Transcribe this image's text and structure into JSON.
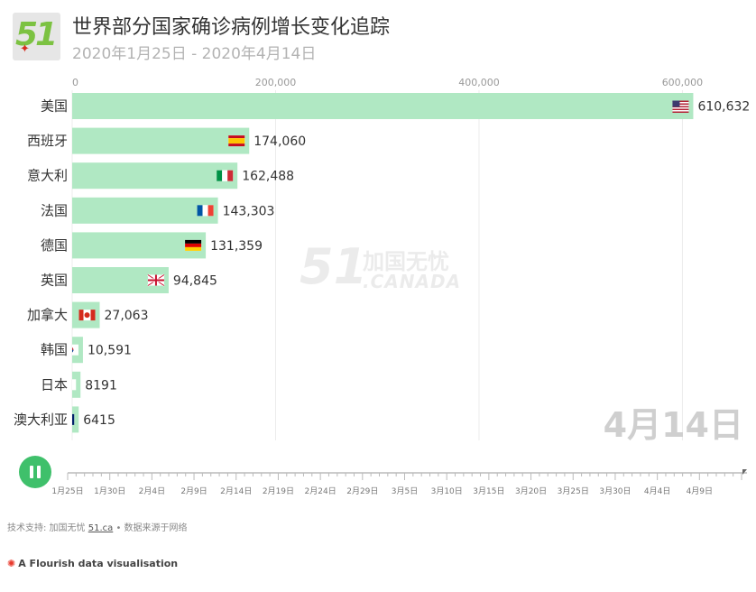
{
  "header": {
    "logo_text": "51",
    "title": "世界部分国家确诊病例增长变化追踪",
    "subtitle": "2020年1月25日 - 2020年4月14日"
  },
  "watermark": {
    "number": "51",
    "cn": "加国无忧",
    "en": ".CANADA"
  },
  "current_date": "4月14日",
  "timeline": {
    "ticks": [
      "1月25日",
      "1月30日",
      "2月4日",
      "2月9日",
      "2月14日",
      "2月19日",
      "2月24日",
      "2月29日",
      "3月5日",
      "3月10日",
      "3月15日",
      "3月20日",
      "3月25日",
      "3月30日",
      "4月4日",
      "4月9日"
    ],
    "progress": 1.0
  },
  "footer": {
    "tech_prefix": "技术支持: 加国无忧",
    "tech_link": "51.ca",
    "tech_suffix": " • 数据来源于网络",
    "flourish": "A Flourish data visualisation"
  },
  "colors": {
    "bar": "#b0e8c3",
    "accent": "#3fc06b",
    "flourish": "#e8392c"
  },
  "chart_data": {
    "type": "bar",
    "orientation": "horizontal",
    "categories": [
      "美国",
      "西班牙",
      "意大利",
      "法国",
      "德国",
      "英国",
      "加拿大",
      "韩国",
      "日本",
      "澳大利亚"
    ],
    "values": [
      610632,
      174060,
      162488,
      143303,
      131359,
      94845,
      27063,
      10591,
      8191,
      6415
    ],
    "value_labels": [
      "610,632",
      "174,060",
      "162,488",
      "143,303",
      "131,359",
      "94,845",
      "27,063",
      "10,591",
      "8191",
      "6415"
    ],
    "flags": [
      "us",
      "es",
      "it",
      "fr",
      "de",
      "gb",
      "ca",
      "kr",
      "jp",
      "au"
    ],
    "xlim": [
      0,
      620000
    ],
    "x_ticks": [
      0,
      200000,
      400000,
      600000
    ],
    "x_tick_labels": [
      "0",
      "200,000",
      "400,000",
      "600,000"
    ],
    "axis_position": "top",
    "grid": true
  }
}
